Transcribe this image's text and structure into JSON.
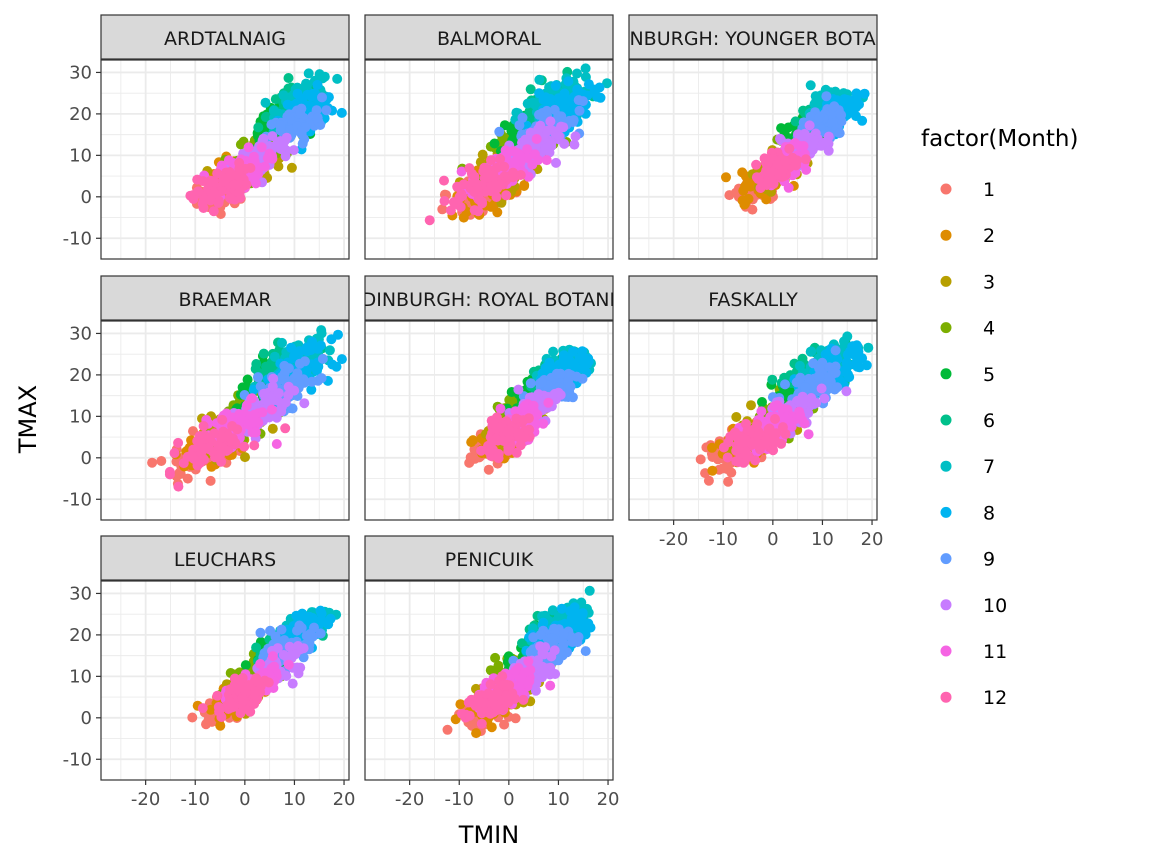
{
  "chart_data": {
    "type": "scatter",
    "xlabel": "TMIN",
    "ylabel": "TMAX",
    "xlim": [
      -29,
      21
    ],
    "ylim": [
      -15,
      33
    ],
    "x_ticks": [
      -20,
      -10,
      0,
      10,
      20
    ],
    "x_tick_labels": [
      "-20",
      "-10",
      "0",
      "10",
      "20"
    ],
    "y_ticks": [
      -10,
      0,
      10,
      20,
      30
    ],
    "y_tick_labels": [
      "-10",
      "0",
      "10",
      "20",
      "30"
    ],
    "grid": true,
    "facet_layout": "3x3 wrap",
    "legend": {
      "title": "factor(Month)",
      "placement": "right",
      "entries": [
        "1",
        "2",
        "3",
        "4",
        "5",
        "6",
        "7",
        "8",
        "9",
        "10",
        "11",
        "12"
      ],
      "colors": [
        "#F8766D",
        "#DE8C00",
        "#B79F00",
        "#7CAE00",
        "#00BA38",
        "#00C08B",
        "#00BFC4",
        "#00B4F0",
        "#619CFF",
        "#C77CFF",
        "#F564E3",
        "#FF64B0"
      ]
    },
    "panels": [
      {
        "label": "ARDTALNAIG",
        "month_centers": [
          [
            -4,
            2
          ],
          [
            -2,
            5
          ],
          [
            2,
            8
          ],
          [
            4,
            12
          ],
          [
            7,
            18
          ],
          [
            10,
            22
          ],
          [
            12,
            24
          ],
          [
            13,
            21
          ],
          [
            10,
            17
          ],
          [
            4,
            10
          ],
          [
            -1,
            6
          ],
          [
            -5,
            2
          ]
        ],
        "spread_x": 5,
        "spread_y": 4
      },
      {
        "label": "BALMORAL",
        "month_centers": [
          [
            -6,
            0
          ],
          [
            -4,
            2
          ],
          [
            0,
            7
          ],
          [
            3,
            12
          ],
          [
            5,
            17
          ],
          [
            8,
            22
          ],
          [
            10,
            24
          ],
          [
            11,
            21
          ],
          [
            8,
            17
          ],
          [
            4,
            11
          ],
          [
            -1,
            6
          ],
          [
            -5,
            3
          ]
        ],
        "spread_x": 6,
        "spread_y": 4.5
      },
      {
        "label": "EDINBURGH: YOUNGER BOTANIC",
        "month_centers": [
          [
            -3,
            2
          ],
          [
            -2,
            4
          ],
          [
            1,
            7
          ],
          [
            4,
            11
          ],
          [
            7,
            16
          ],
          [
            10,
            20
          ],
          [
            12,
            22
          ],
          [
            13,
            21
          ],
          [
            10,
            17
          ],
          [
            6,
            12
          ],
          [
            3,
            8
          ],
          [
            1,
            7
          ]
        ],
        "spread_x": 4,
        "spread_y": 3.5
      },
      {
        "label": "BRAEMAR",
        "month_centers": [
          [
            -9,
            1
          ],
          [
            -6,
            3
          ],
          [
            -2,
            7
          ],
          [
            2,
            12
          ],
          [
            5,
            17
          ],
          [
            8,
            22
          ],
          [
            11,
            24
          ],
          [
            11,
            21
          ],
          [
            8,
            17
          ],
          [
            3,
            11
          ],
          [
            -2,
            7
          ],
          [
            -6,
            3
          ]
        ],
        "spread_x": 6,
        "spread_y": 4.5
      },
      {
        "label": "EDINBURGH: ROYAL BOTANIC",
        "month_centers": [
          [
            -3,
            3
          ],
          [
            -2,
            4
          ],
          [
            1,
            8
          ],
          [
            3,
            12
          ],
          [
            6,
            16
          ],
          [
            9,
            20
          ],
          [
            11,
            22
          ],
          [
            11,
            21
          ],
          [
            9,
            17
          ],
          [
            5,
            12
          ],
          [
            2,
            8
          ],
          [
            -1,
            5
          ]
        ],
        "spread_x": 4.5,
        "spread_y": 3.5
      },
      {
        "label": "FASKALLY",
        "month_centers": [
          [
            -8,
            2
          ],
          [
            -5,
            4
          ],
          [
            -1,
            8
          ],
          [
            3,
            12
          ],
          [
            6,
            17
          ],
          [
            9,
            21
          ],
          [
            11,
            23
          ],
          [
            12,
            21
          ],
          [
            9,
            17
          ],
          [
            4,
            11
          ],
          [
            0,
            7
          ],
          [
            -4,
            4
          ]
        ],
        "spread_x": 5.5,
        "spread_y": 4
      },
      {
        "label": "LEUCHARS",
        "month_centers": [
          [
            -3,
            3
          ],
          [
            -2,
            4
          ],
          [
            1,
            7
          ],
          [
            3,
            11
          ],
          [
            6,
            15
          ],
          [
            9,
            19
          ],
          [
            12,
            22
          ],
          [
            12,
            21
          ],
          [
            9,
            17
          ],
          [
            6,
            12
          ],
          [
            2,
            8
          ],
          [
            -1,
            5
          ]
        ],
        "spread_x": 4.5,
        "spread_y": 3.5
      },
      {
        "label": "PENICUIK",
        "month_centers": [
          [
            -5,
            2
          ],
          [
            -3,
            4
          ],
          [
            0,
            7
          ],
          [
            3,
            12
          ],
          [
            6,
            17
          ],
          [
            9,
            21
          ],
          [
            11,
            23
          ],
          [
            11,
            21
          ],
          [
            9,
            17
          ],
          [
            4,
            11
          ],
          [
            0,
            7
          ],
          [
            -3,
            4
          ]
        ],
        "spread_x": 5,
        "spread_y": 4
      }
    ],
    "points_per_month": 70
  }
}
